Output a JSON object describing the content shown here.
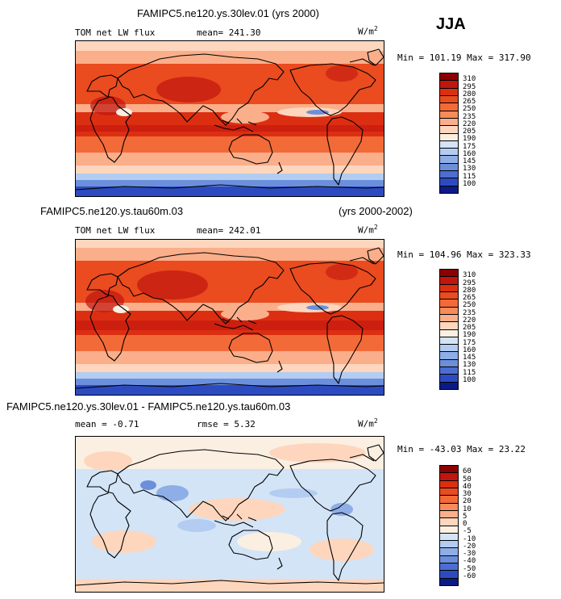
{
  "season": "JJA",
  "panels": [
    {
      "title": "FAMIPC5.ne120.ys.30lev.01 (yrs 2000)",
      "title_right": "",
      "variable": "TOM net LW flux",
      "stat1": "mean= 241.30",
      "stat2": "",
      "units_base": "W/m",
      "units_exp": "2",
      "minmax": "Min = 101.19 Max = 317.90",
      "colorbar_levels": [
        "310",
        "295",
        "280",
        "265",
        "250",
        "235",
        "220",
        "205",
        "190",
        "175",
        "160",
        "145",
        "130",
        "115",
        "100"
      ],
      "colorbar_colors": [
        "#8b0000",
        "#c1150f",
        "#dc2f12",
        "#ea4b1f",
        "#f26a38",
        "#f78b5a",
        "#fbae8a",
        "#fdd6bd",
        "#fbefe2",
        "#d3e4f7",
        "#b3ccf1",
        "#8daee6",
        "#6c8fdc",
        "#4c6ed0",
        "#2d4bc0",
        "#0c1a86"
      ]
    },
    {
      "title": "FAMIPC5.ne120.ys.tau60m.03",
      "title_right": "(yrs 2000-2002)",
      "variable": "TOM net LW flux",
      "stat1": "mean= 242.01",
      "stat2": "",
      "units_base": "W/m",
      "units_exp": "2",
      "minmax": "Min = 104.96 Max = 323.33",
      "colorbar_levels": [
        "310",
        "295",
        "280",
        "265",
        "250",
        "235",
        "220",
        "205",
        "190",
        "175",
        "160",
        "145",
        "130",
        "115",
        "100"
      ],
      "colorbar_colors": [
        "#8b0000",
        "#c1150f",
        "#dc2f12",
        "#ea4b1f",
        "#f26a38",
        "#f78b5a",
        "#fbae8a",
        "#fdd6bd",
        "#fbefe2",
        "#d3e4f7",
        "#b3ccf1",
        "#8daee6",
        "#6c8fdc",
        "#4c6ed0",
        "#2d4bc0",
        "#0c1a86"
      ]
    },
    {
      "title": "FAMIPC5.ne120.ys.30lev.01 - FAMIPC5.ne120.ys.tau60m.03",
      "title_right": "",
      "variable": "",
      "stat1": "mean =  -0.71",
      "stat2": "rmse =   5.32",
      "units_base": "W/m",
      "units_exp": "2",
      "minmax": "Min = -43.03 Max =  23.22",
      "colorbar_levels": [
        "60",
        "50",
        "40",
        "30",
        "20",
        "10",
        "5",
        "0",
        "-5",
        "-10",
        "-20",
        "-30",
        "-40",
        "-50",
        "-60"
      ],
      "colorbar_colors": [
        "#8b0000",
        "#c1150f",
        "#dc2f12",
        "#ea4b1f",
        "#f26a38",
        "#f78b5a",
        "#fbae8a",
        "#fdd6bd",
        "#fbefe2",
        "#d3e4f7",
        "#b3ccf1",
        "#8daee6",
        "#6c8fdc",
        "#4c6ed0",
        "#2d4bc0",
        "#0c1a86"
      ]
    }
  ]
}
